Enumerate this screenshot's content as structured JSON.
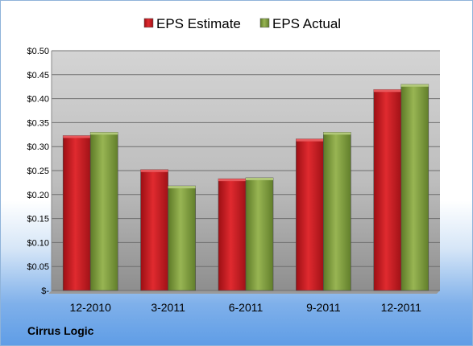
{
  "chart_data": {
    "type": "bar",
    "categories": [
      "12-2010",
      "3-2011",
      "6-2011",
      "9-2011",
      "12-2011"
    ],
    "series": [
      {
        "name": "EPS Estimate",
        "values": [
          0.323,
          0.252,
          0.233,
          0.316,
          0.419
        ],
        "color": "#c8161d"
      },
      {
        "name": "EPS Actual",
        "values": [
          0.33,
          0.218,
          0.235,
          0.33,
          0.43
        ],
        "color": "#7b9a3a"
      }
    ],
    "yticks": [
      "$-",
      "$0.05",
      "$0.10",
      "$0.15",
      "$0.20",
      "$0.25",
      "$0.30",
      "$0.35",
      "$0.40",
      "$0.45",
      "$0.50"
    ],
    "ylim": [
      0,
      0.5
    ],
    "grid": true,
    "legend_position": "top"
  },
  "footer": {
    "company": "Cirrus Logic"
  }
}
